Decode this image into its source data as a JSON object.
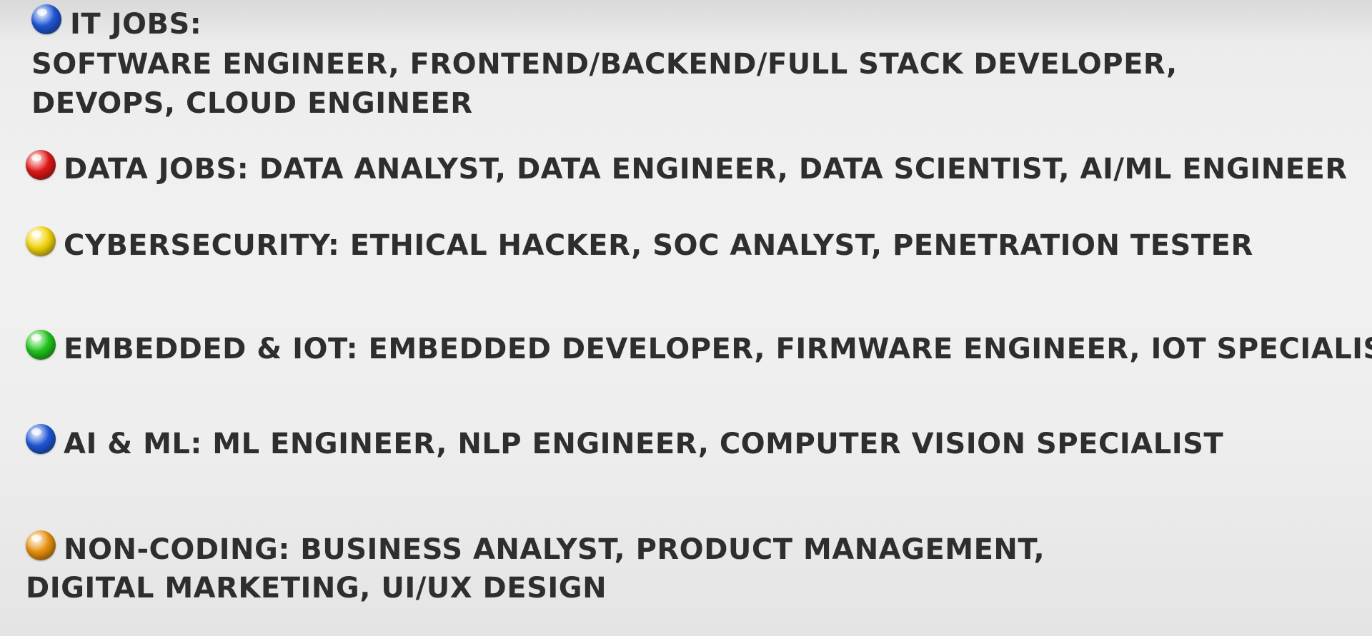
{
  "slide": {
    "items": [
      {
        "bullet_color": "#1f57d6",
        "lines": [
          "IT JOBS:",
          "SOFTWARE ENGINEER, FRONTEND/BACKEND/FULL STACK DEVELOPER,",
          "DEVOPS,  CLOUD ENGINEER"
        ]
      },
      {
        "bullet_color": "#e01818",
        "lines": [
          "DATA JOBS: DATA ANALYST, DATA ENGINEER, DATA SCIENTIST, AI/ML ENGINEER"
        ]
      },
      {
        "bullet_color": "#f2d40c",
        "lines": [
          "CYBERSECURITY: ETHICAL HACKER, SOC ANALYST, PENETRATION TESTER"
        ]
      },
      {
        "bullet_color": "#21c41c",
        "lines": [
          "EMBEDDED & IOT: EMBEDDED DEVELOPER, FIRMWARE ENGINEER, IOT SPECIALIST"
        ]
      },
      {
        "bullet_color": "#1f57d6",
        "lines": [
          "AI & ML: ML ENGINEER, NLP ENGINEER, COMPUTER VISION SPECIALIST"
        ]
      },
      {
        "bullet_color": "#e8900c",
        "lines": [
          "NON-CODING: BUSINESS ANALYST, PRODUCT MANAGEMENT,",
          "DIGITAL MARKETING, UI/UX DESIGN"
        ]
      }
    ]
  }
}
